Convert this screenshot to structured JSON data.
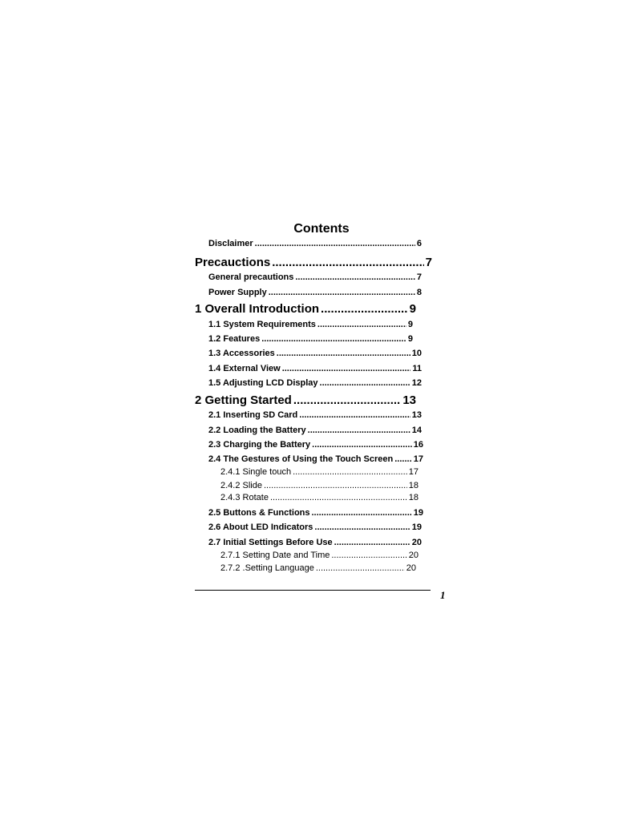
{
  "title": "Contents",
  "entries": [
    {
      "label": "Disclaimer",
      "page": "6"
    },
    {
      "label": "Precauctions",
      "page": "7"
    },
    {
      "label": "General precautions",
      "page": "7"
    },
    {
      "label": "Power Supply",
      "page": "8"
    },
    {
      "label": "1 Overall Introduction",
      "page": "9"
    },
    {
      "label": "1.1 System Requirements",
      "page": "9"
    },
    {
      "label": "1.2 Features",
      "page": "9"
    },
    {
      "label": "1.3 Accessories",
      "page": "10"
    },
    {
      "label": "1.4 External View",
      "page": "11"
    },
    {
      "label": "1.5 Adjusting LCD Display",
      "page": "12"
    },
    {
      "label": "2 Getting Started",
      "page": "13"
    },
    {
      "label": "2.1 Inserting SD Card",
      "page": "13"
    },
    {
      "label": "2.2 Loading the Battery",
      "page": "14"
    },
    {
      "label": "2.3 Charging the Battery",
      "page": "16"
    },
    {
      "label": "2.4 The Gestures of Using the Touch Screen",
      "page": "17"
    },
    {
      "label": "2.4.1 Single touch",
      "page": "17"
    },
    {
      "label": "2.4.2 Slide",
      "page": "18"
    },
    {
      "label": "2.4.3 Rotate",
      "page": "18"
    },
    {
      "label": "2.5 Buttons & Functions",
      "page": "19"
    },
    {
      "label": "2.6 About LED Indicators",
      "page": "19"
    },
    {
      "label": "2.7 Initial Settings Before Use",
      "page": "20"
    },
    {
      "label": "2.7.1 Setting Date and Time",
      "page": "20"
    },
    {
      "label": "2.7.2 .Setting Language",
      "page": "20"
    }
  ],
  "footer": {
    "page_number": "1"
  }
}
